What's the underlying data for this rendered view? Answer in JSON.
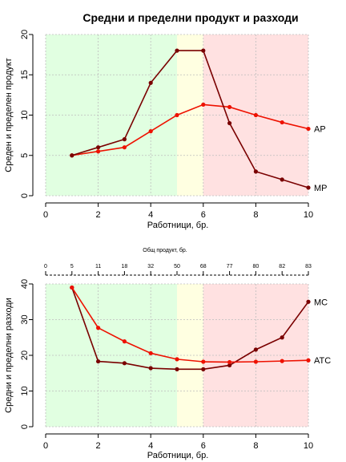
{
  "title": "Средни и пределни продукт и разходи",
  "colors": {
    "zone_green": "#e1ffe1",
    "zone_yellow": "#ffffe1",
    "zone_red": "#ffe1e1",
    "average_series": "#ee1100",
    "marginal_series": "#7a0000"
  },
  "chart_data": [
    {
      "type": "line",
      "title": "Средни и пределни продукт и разходи",
      "xlabel": "Работници, бр.",
      "ylabel": "Среден и пределен продукт",
      "xlim": [
        0,
        10
      ],
      "ylim": [
        0,
        20
      ],
      "xticks": [
        "0",
        "2",
        "4",
        "6",
        "8",
        "10"
      ],
      "yticks": [
        "0",
        "5",
        "10",
        "15",
        "20"
      ],
      "grid": true,
      "zones": [
        {
          "from": 0,
          "to": 5,
          "color": "zone_green"
        },
        {
          "from": 5,
          "to": 6,
          "color": "zone_yellow"
        },
        {
          "from": 6,
          "to": 10,
          "color": "zone_red"
        }
      ],
      "x": [
        1,
        2,
        3,
        4,
        5,
        6,
        7,
        8,
        9,
        10
      ],
      "series": [
        {
          "name": "AP",
          "color": "average_series",
          "values": [
            5,
            5.5,
            6,
            8,
            10,
            11.3,
            11,
            10,
            9.1,
            8.3
          ]
        },
        {
          "name": "MP",
          "color": "marginal_series",
          "values": [
            5,
            6,
            7,
            14,
            18,
            18,
            9,
            3,
            2,
            1
          ]
        }
      ]
    },
    {
      "type": "line",
      "title": "",
      "xlabel": "Работници, бр.",
      "ylabel": "Средни и пределни разходи",
      "top_axis_label": "Общ продукт, бр.",
      "top_axis_ticks": [
        "0",
        "5",
        "11",
        "18",
        "32",
        "50",
        "68",
        "77",
        "80",
        "82",
        "83"
      ],
      "xlim": [
        0,
        10
      ],
      "ylim": [
        0,
        40
      ],
      "xticks": [
        "0",
        "2",
        "4",
        "6",
        "8",
        "10"
      ],
      "yticks": [
        "0",
        "10",
        "20",
        "30",
        "40"
      ],
      "grid": true,
      "zones": [
        {
          "from": 0,
          "to": 5,
          "color": "zone_green"
        },
        {
          "from": 5,
          "to": 6,
          "color": "zone_yellow"
        },
        {
          "from": 6,
          "to": 10,
          "color": "zone_red"
        }
      ],
      "x": [
        1,
        2,
        3,
        4,
        5,
        6,
        7,
        8,
        9,
        10
      ],
      "series": [
        {
          "name": "MC",
          "color": "marginal_series",
          "values": [
            39,
            18.3,
            17.8,
            16.4,
            16.1,
            16.1,
            17.2,
            21.6,
            25,
            35
          ]
        },
        {
          "name": "ATC",
          "color": "average_series",
          "values": [
            39,
            27.7,
            23.9,
            20.6,
            18.9,
            18.2,
            18.1,
            18.2,
            18.4,
            18.6
          ]
        }
      ]
    }
  ]
}
